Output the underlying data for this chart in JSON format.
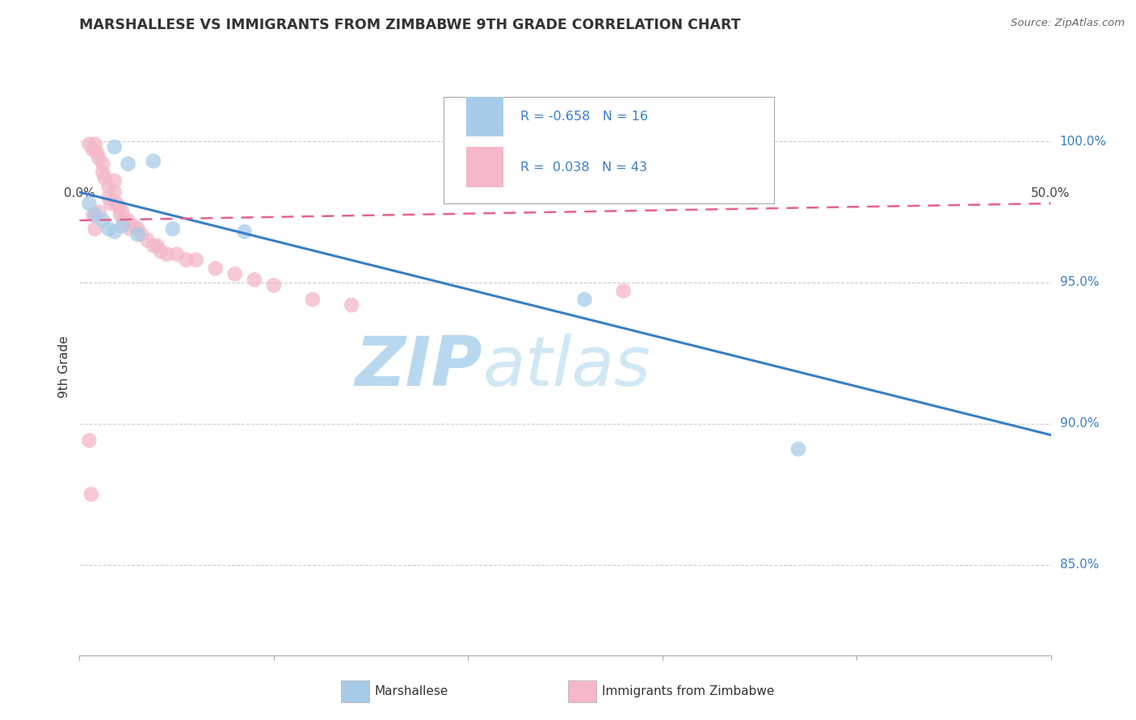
{
  "title": "MARSHALLESE VS IMMIGRANTS FROM ZIMBABWE 9TH GRADE CORRELATION CHART",
  "source": "Source: ZipAtlas.com",
  "ylabel": "9th Grade",
  "yaxis_labels": [
    "100.0%",
    "95.0%",
    "90.0%",
    "85.0%"
  ],
  "yaxis_values": [
    1.0,
    0.95,
    0.9,
    0.85
  ],
  "xlim": [
    0.0,
    0.5
  ],
  "ylim": [
    0.818,
    1.022
  ],
  "legend_label_blue": "Marshallese",
  "legend_label_pink": "Immigrants from Zimbabwe",
  "blue_scatter_x": [
    0.018,
    0.025,
    0.038,
    0.005,
    0.008,
    0.012,
    0.015,
    0.018,
    0.022,
    0.03,
    0.048,
    0.085,
    0.26,
    0.37
  ],
  "blue_scatter_y": [
    0.998,
    0.992,
    0.993,
    0.978,
    0.974,
    0.972,
    0.969,
    0.968,
    0.97,
    0.967,
    0.969,
    0.968,
    0.944,
    0.891
  ],
  "pink_scatter_x": [
    0.005,
    0.007,
    0.008,
    0.009,
    0.01,
    0.012,
    0.012,
    0.013,
    0.015,
    0.015,
    0.016,
    0.018,
    0.018,
    0.019,
    0.02,
    0.021,
    0.022,
    0.023,
    0.025,
    0.026,
    0.028,
    0.03,
    0.032,
    0.035,
    0.038,
    0.04,
    0.042,
    0.045,
    0.05,
    0.055,
    0.06,
    0.07,
    0.08,
    0.09,
    0.1,
    0.12,
    0.14,
    0.005,
    0.006,
    0.007,
    0.008,
    0.01,
    0.28
  ],
  "pink_scatter_y": [
    0.999,
    0.997,
    0.999,
    0.996,
    0.994,
    0.992,
    0.989,
    0.987,
    0.984,
    0.98,
    0.978,
    0.986,
    0.982,
    0.978,
    0.977,
    0.974,
    0.975,
    0.972,
    0.972,
    0.969,
    0.97,
    0.969,
    0.967,
    0.965,
    0.963,
    0.963,
    0.961,
    0.96,
    0.96,
    0.958,
    0.958,
    0.955,
    0.953,
    0.951,
    0.949,
    0.944,
    0.942,
    0.894,
    0.875,
    0.974,
    0.969,
    0.975,
    0.947
  ],
  "blue_line_x": [
    0.0,
    0.5
  ],
  "blue_line_y": [
    0.982,
    0.896
  ],
  "pink_line_x": [
    0.0,
    0.5
  ],
  "pink_line_y": [
    0.972,
    0.978
  ],
  "blue_color": "#a8cce8",
  "pink_color": "#f4b8c8",
  "blue_line_color": "#3a7ec8",
  "pink_line_color": "#e86090",
  "watermark_zip": "ZIP",
  "watermark_atlas": "atlas",
  "watermark_color": "#cce4f4",
  "background_color": "#ffffff",
  "grid_color": "#cccccc"
}
